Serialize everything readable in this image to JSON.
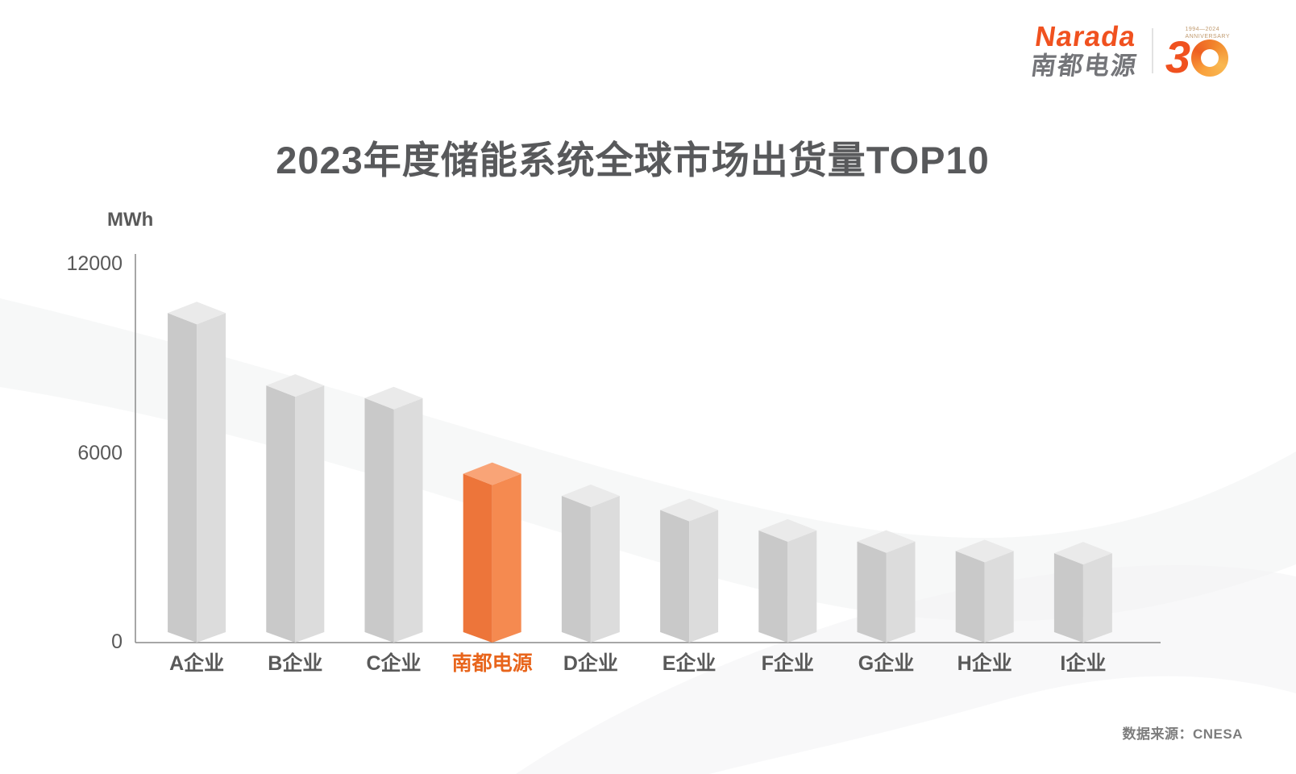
{
  "logo": {
    "brand": "Narada",
    "brand_cn": "南都电源",
    "anniversary_number": "30",
    "anniversary_years": "1994—2024",
    "anniversary_label": "ANNIVERSARY",
    "brand_color": "#f0511f",
    "brand_cn_color": "#747579"
  },
  "title": {
    "text": "2023年度储能系统全球市场出货量TOP10",
    "color": "#58595b"
  },
  "source": {
    "text": "数据来源：CNESA"
  },
  "chart_data": {
    "type": "bar",
    "style": "3d-isometric-columns",
    "title": "2023年度储能系统全球市场出货量TOP10",
    "unit_label": "MWh",
    "xlabel": "",
    "ylabel": "MWh",
    "categories": [
      "A企业",
      "B企业",
      "C企业",
      "南都电源",
      "D企业",
      "E企业",
      "F企业",
      "G企业",
      "H企业",
      "I企业"
    ],
    "values": [
      10100,
      7800,
      7400,
      5000,
      4300,
      3850,
      3200,
      2850,
      2550,
      2480
    ],
    "highlight_index": 3,
    "highlight_category": "南都电源",
    "ylim": [
      0,
      12000
    ],
    "yticks": [
      {
        "label": "12000",
        "value": 12000
      },
      {
        "label": "6000",
        "value": 6000
      },
      {
        "label": "0",
        "value": 0
      }
    ],
    "grid": false,
    "legend": false,
    "colors": {
      "bar_gray": {
        "left": "#c9c9c9",
        "right": "#dcdcdc",
        "top": "#eaeaea"
      },
      "bar_orange": {
        "left": "#ed753a",
        "right": "#f58a50",
        "top": "#f9a477"
      },
      "axis": "#8a8a8a",
      "tick_text": "#595959",
      "highlight_text": "#e8651c"
    }
  }
}
